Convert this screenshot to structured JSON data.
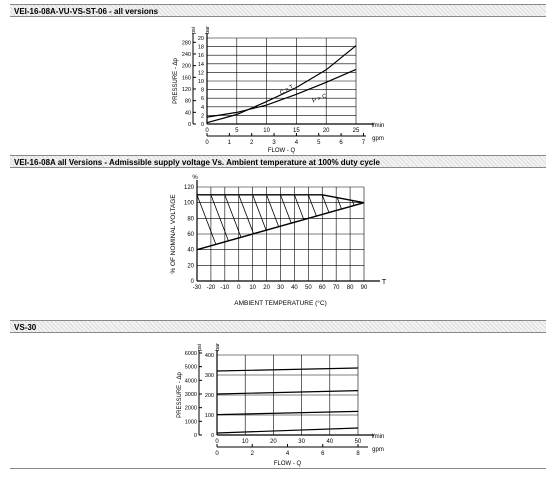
{
  "sections": [
    {
      "title": "VEI-16-08A-VU-VS-ST-06 - all versions"
    },
    {
      "title": "VEI-16-08A all Versions - Admissible supply voltage Vs. Ambient temperature at 100% duty cycle"
    },
    {
      "title": "VS-30"
    }
  ],
  "chart_data": [
    {
      "type": "line",
      "ylabel": "PRESSURE - Δp",
      "xlabel": "FLOW - Q",
      "x_unit_primary": "l/min",
      "x_unit_secondary": "gpm",
      "y_unit_primary": "bar",
      "y_unit_secondary": "psi",
      "xlim": [
        0,
        25
      ],
      "ylim": [
        0,
        20
      ],
      "x_ticks": [
        "0",
        "5",
        "10",
        "15",
        "20",
        "25"
      ],
      "x_ticks_secondary": [
        "0",
        "1",
        "2",
        "3",
        "4",
        "5",
        "6",
        "7"
      ],
      "y_ticks": [
        "0",
        "2",
        "4",
        "6",
        "8",
        "10",
        "12",
        "14",
        "16",
        "18",
        "20"
      ],
      "y_ticks_secondary": [
        "0",
        "40",
        "80",
        "120",
        "160",
        "200",
        "240",
        "280"
      ],
      "series": [
        {
          "name": "C > T",
          "x": [
            0,
            5,
            10,
            15,
            20,
            25
          ],
          "y": [
            0.3,
            2.2,
            5.2,
            8.5,
            12.6,
            18.2
          ]
        },
        {
          "name": "P > C",
          "x": [
            0,
            5,
            10,
            15,
            20,
            25
          ],
          "y": [
            1.6,
            2.7,
            4.4,
            6.9,
            9.7,
            12.7
          ]
        }
      ]
    },
    {
      "type": "area",
      "ylabel": "% OF NOMINAL VOLTAGE",
      "xlabel": "AMBIENT TEMPERATURE (°C)",
      "x_unit": "T",
      "y_unit": "%",
      "xlim": [
        -30,
        90
      ],
      "ylim": [
        0,
        120
      ],
      "x_ticks": [
        "-30",
        "-20",
        "-10",
        "0",
        "10",
        "20",
        "30",
        "40",
        "50",
        "60",
        "70",
        "80",
        "90"
      ],
      "y_ticks": [
        "0",
        "20",
        "40",
        "60",
        "80",
        "100",
        "120"
      ],
      "boundary": {
        "upper": {
          "x": [
            -30,
            60,
            90
          ],
          "y": [
            110,
            110,
            100
          ]
        },
        "lower": {
          "x": [
            -30,
            90
          ],
          "y": [
            40,
            100
          ]
        }
      }
    },
    {
      "type": "line",
      "ylabel": "PRESSURE - Δp",
      "xlabel": "FLOW - Q",
      "x_unit_primary": "l/min",
      "x_unit_secondary": "gpm",
      "y_unit_primary": "bar",
      "y_unit_secondary": "psi",
      "xlim": [
        0,
        50
      ],
      "ylim": [
        0,
        400
      ],
      "x_ticks": [
        "0",
        "10",
        "20",
        "30",
        "40",
        "50"
      ],
      "x_ticks_secondary": [
        "0",
        "2",
        "4",
        "6",
        "8"
      ],
      "y_ticks": [
        "0",
        "100",
        "200",
        "300",
        "400"
      ],
      "y_ticks_secondary": [
        "0",
        "1000",
        "2000",
        "3000",
        "4000",
        "5000",
        "6000"
      ],
      "series": [
        {
          "x": [
            0,
            50
          ],
          "y": [
            320,
            335
          ]
        },
        {
          "x": [
            0,
            50
          ],
          "y": [
            205,
            222
          ]
        },
        {
          "x": [
            0,
            50
          ],
          "y": [
            102,
            118
          ]
        },
        {
          "x": [
            0,
            50
          ],
          "y": [
            10,
            35
          ]
        }
      ]
    }
  ]
}
